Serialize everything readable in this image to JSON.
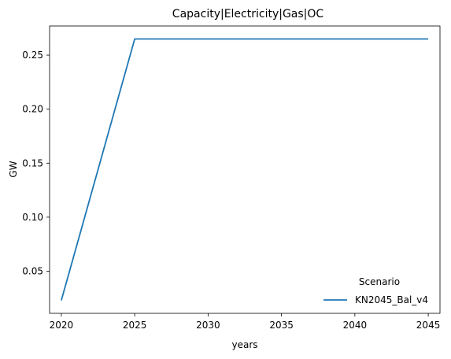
{
  "chart_data": {
    "type": "line",
    "title": "Capacity|Electricity|Gas|OC",
    "xlabel": "years",
    "ylabel": "GW",
    "x": [
      2020,
      2025,
      2030,
      2035,
      2040,
      2045
    ],
    "series": [
      {
        "name": "KN2045_Bal_v4",
        "color": "#1f77b4",
        "values": [
          0.023,
          0.265,
          0.265,
          0.265,
          0.265,
          0.265
        ]
      }
    ],
    "xticks": [
      2020,
      2025,
      2030,
      2035,
      2040,
      2045
    ],
    "yticks": [
      0.05,
      0.1,
      0.15,
      0.2,
      0.25
    ],
    "xlim": [
      2019.2,
      2045.8
    ],
    "ylim": [
      0.011,
      0.277
    ],
    "grid": false,
    "legend": {
      "title": "Scenario",
      "placement": "lower-right"
    }
  }
}
